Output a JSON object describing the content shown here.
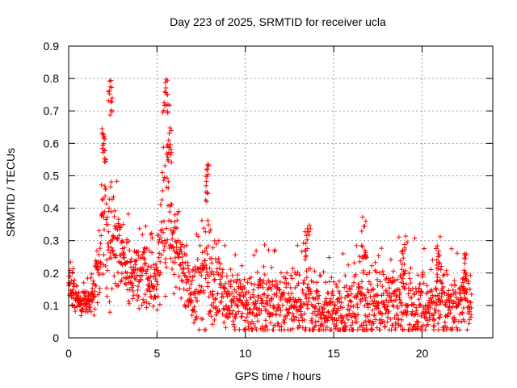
{
  "chart_data": {
    "type": "scatter",
    "title": "Day 223 of 2025, SRMTID for receiver ucla",
    "xlabel": "GPS time / hours",
    "ylabel": "SRMTID / TECUs",
    "xlim": [
      0,
      24
    ],
    "ylim": [
      0,
      0.9
    ],
    "x_ticks": [
      0,
      5,
      10,
      15,
      20
    ],
    "x_tick_labels": [
      "0",
      "5",
      "10",
      "15",
      "20"
    ],
    "y_ticks": [
      0,
      0.1,
      0.2,
      0.3,
      0.4,
      0.5,
      0.6,
      0.7,
      0.8,
      0.9
    ],
    "y_tick_labels": [
      "0",
      "0.1",
      "0.2",
      "0.3",
      "0.4",
      "0.5",
      "0.6",
      "0.7",
      "0.8",
      "0.9"
    ],
    "grid": true,
    "marker": "+",
    "color": "#ff0000",
    "x_data_end": 22.8,
    "envelope": {
      "hours": [
        0,
        0.5,
        1.0,
        1.5,
        1.8,
        2.0,
        2.3,
        2.5,
        3.0,
        3.5,
        4.0,
        4.5,
        5.0,
        5.3,
        5.6,
        5.9,
        6.2,
        6.5,
        7.0,
        7.5,
        7.8,
        8.2,
        9.0,
        10.0,
        11.0,
        12.0,
        13.0,
        13.5,
        14.0,
        15.0,
        16.0,
        16.7,
        17.0,
        18.0,
        18.9,
        20.0,
        20.9,
        21.5,
        22.0,
        22.8
      ],
      "median": [
        0.14,
        0.12,
        0.1,
        0.15,
        0.28,
        0.38,
        0.26,
        0.32,
        0.27,
        0.18,
        0.22,
        0.18,
        0.22,
        0.33,
        0.42,
        0.3,
        0.26,
        0.2,
        0.13,
        0.16,
        0.2,
        0.16,
        0.12,
        0.09,
        0.11,
        0.1,
        0.1,
        0.13,
        0.09,
        0.08,
        0.08,
        0.12,
        0.1,
        0.1,
        0.11,
        0.1,
        0.11,
        0.1,
        0.1,
        0.11
      ],
      "spread": [
        0.07,
        0.07,
        0.05,
        0.1,
        0.18,
        0.28,
        0.28,
        0.22,
        0.16,
        0.12,
        0.16,
        0.12,
        0.18,
        0.3,
        0.32,
        0.2,
        0.14,
        0.12,
        0.1,
        0.2,
        0.28,
        0.14,
        0.12,
        0.12,
        0.15,
        0.12,
        0.14,
        0.2,
        0.14,
        0.13,
        0.16,
        0.2,
        0.15,
        0.15,
        0.16,
        0.14,
        0.16,
        0.13,
        0.12,
        0.13
      ],
      "peaks": [
        {
          "x": 2.35,
          "y": 0.805
        },
        {
          "x": 5.5,
          "y": 0.81
        },
        {
          "x": 2.0,
          "y": 0.66
        },
        {
          "x": 5.7,
          "y": 0.65
        },
        {
          "x": 7.8,
          "y": 0.54
        },
        {
          "x": 13.5,
          "y": 0.36
        },
        {
          "x": 16.7,
          "y": 0.36
        },
        {
          "x": 18.9,
          "y": 0.29
        },
        {
          "x": 20.9,
          "y": 0.33
        },
        {
          "x": 22.4,
          "y": 0.26
        }
      ]
    }
  }
}
